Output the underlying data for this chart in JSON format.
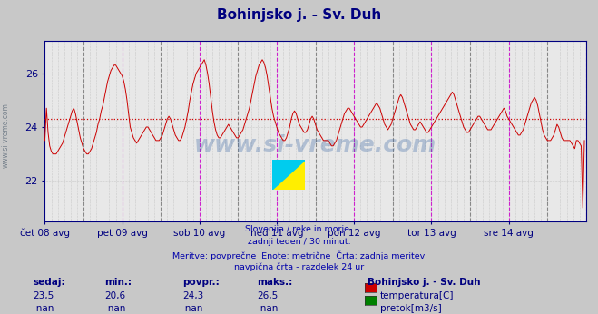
{
  "title": "Bohinjsko j. - Sv. Duh",
  "title_color": "#000080",
  "bg_color": "#c8c8c8",
  "plot_bg_color": "#e8e8e8",
  "line_color": "#cc0000",
  "avg_line_color": "#cc0000",
  "avg_value": 24.3,
  "y_axis_min": 20.5,
  "y_axis_max": 27.2,
  "y_ticks": [
    22,
    24,
    26
  ],
  "grid_color": "#b0b0b0",
  "x_labels": [
    "čet 08 avg",
    "pet 09 avg",
    "sob 10 avg",
    "ned 11 avg",
    "pon 12 avg",
    "tor 13 avg",
    "sre 14 avg"
  ],
  "vline_magenta": "#cc00cc",
  "vline_dark": "#505050",
  "watermark": "www.si-vreme.com",
  "watermark_color": "#3060a0",
  "watermark_alpha": 0.3,
  "subtitle_lines": [
    "Slovenija / reke in morje.",
    "zadnji teden / 30 minut.",
    "Meritve: povprečne  Enote: metrične  Črta: zadnja meritev",
    "navpična črta - razdelek 24 ur"
  ],
  "subtitle_color": "#0000aa",
  "legend_title": "Bohinjsko j. - Sv. Duh",
  "legend_items": [
    {
      "label": "temperatura[C]",
      "color": "#cc0000"
    },
    {
      "label": "pretok[m3/s]",
      "color": "#008000"
    }
  ],
  "stats_headers": [
    "sedaj:",
    "min.:",
    "povpr.:",
    "maks.:"
  ],
  "stats_temp": [
    "23,5",
    "20,6",
    "24,3",
    "26,5"
  ],
  "stats_pretok": [
    "-nan",
    "-nan",
    "-nan",
    "-nan"
  ],
  "num_points": 336,
  "points_per_day": 48
}
